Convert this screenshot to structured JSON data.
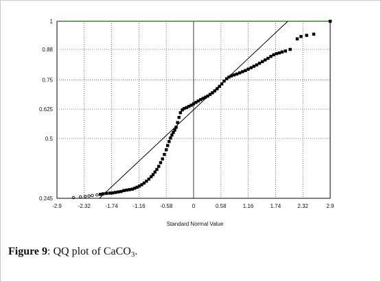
{
  "chart_data": {
    "type": "scatter",
    "title": "",
    "xlabel": "Standard Normal Value",
    "ylabel": "",
    "xlim": [
      -2.9,
      2.9
    ],
    "ylim": [
      0.245,
      1.0
    ],
    "x_ticks": [
      "-2.9",
      "-2.32",
      "-1.74",
      "-1.16",
      "-0.58",
      "0",
      "0.58",
      "1.16",
      "1.74",
      "2.32",
      "2.9"
    ],
    "y_ticks": [
      "0.245",
      "0.5",
      "0.625",
      "0.75",
      "0.88",
      "1"
    ],
    "grid": "dotted",
    "reference_line": {
      "x": [
        -2.0,
        2.0
      ],
      "y": [
        0.245,
        1.0
      ]
    },
    "series": [
      {
        "points": [
          [
            -2.55,
            0.248
          ],
          [
            -2.4,
            0.251
          ],
          [
            -2.3,
            0.253
          ],
          [
            -2.22,
            0.255
          ],
          [
            -2.15,
            0.257
          ],
          [
            -2.05,
            0.259
          ],
          [
            -1.98,
            0.262
          ],
          [
            -1.92,
            0.264
          ],
          [
            -1.85,
            0.266
          ],
          [
            -1.78,
            0.267
          ],
          [
            -1.72,
            0.268
          ],
          [
            -1.66,
            0.27
          ],
          [
            -1.6,
            0.272
          ],
          [
            -1.54,
            0.274
          ],
          [
            -1.48,
            0.278
          ],
          [
            -1.42,
            0.28
          ],
          [
            -1.36,
            0.282
          ],
          [
            -1.3,
            0.284
          ],
          [
            -1.25,
            0.288
          ],
          [
            -1.2,
            0.292
          ],
          [
            -1.15,
            0.297
          ],
          [
            -1.1,
            0.303
          ],
          [
            -1.05,
            0.31
          ],
          [
            -1.0,
            0.318
          ],
          [
            -0.95,
            0.327
          ],
          [
            -0.9,
            0.337
          ],
          [
            -0.86,
            0.346
          ],
          [
            -0.82,
            0.357
          ],
          [
            -0.78,
            0.368
          ],
          [
            -0.74,
            0.381
          ],
          [
            -0.7,
            0.397
          ],
          [
            -0.66,
            0.413
          ],
          [
            -0.62,
            0.432
          ],
          [
            -0.58,
            0.452
          ],
          [
            -0.55,
            0.47
          ],
          [
            -0.52,
            0.487
          ],
          [
            -0.49,
            0.502
          ],
          [
            -0.46,
            0.515
          ],
          [
            -0.43,
            0.526
          ],
          [
            -0.4,
            0.536
          ],
          [
            -0.37,
            0.548
          ],
          [
            -0.34,
            0.568
          ],
          [
            -0.31,
            0.59
          ],
          [
            -0.28,
            0.61
          ],
          [
            -0.24,
            0.622
          ],
          [
            -0.2,
            0.628
          ],
          [
            -0.15,
            0.632
          ],
          [
            -0.1,
            0.637
          ],
          [
            -0.05,
            0.642
          ],
          [
            0.0,
            0.648
          ],
          [
            0.05,
            0.654
          ],
          [
            0.1,
            0.66
          ],
          [
            0.15,
            0.666
          ],
          [
            0.2,
            0.671
          ],
          [
            0.25,
            0.676
          ],
          [
            0.3,
            0.681
          ],
          [
            0.35,
            0.688
          ],
          [
            0.4,
            0.695
          ],
          [
            0.45,
            0.703
          ],
          [
            0.5,
            0.712
          ],
          [
            0.55,
            0.722
          ],
          [
            0.6,
            0.733
          ],
          [
            0.65,
            0.745
          ],
          [
            0.7,
            0.755
          ],
          [
            0.75,
            0.762
          ],
          [
            0.8,
            0.767
          ],
          [
            0.86,
            0.771
          ],
          [
            0.92,
            0.775
          ],
          [
            0.98,
            0.78
          ],
          [
            1.04,
            0.785
          ],
          [
            1.1,
            0.79
          ],
          [
            1.16,
            0.796
          ],
          [
            1.22,
            0.802
          ],
          [
            1.28,
            0.808
          ],
          [
            1.34,
            0.814
          ],
          [
            1.4,
            0.821
          ],
          [
            1.46,
            0.828
          ],
          [
            1.52,
            0.835
          ],
          [
            1.58,
            0.842
          ],
          [
            1.64,
            0.85
          ],
          [
            1.7,
            0.857
          ],
          [
            1.76,
            0.862
          ],
          [
            1.82,
            0.865
          ],
          [
            1.88,
            0.869
          ],
          [
            1.95,
            0.873
          ],
          [
            2.05,
            0.88
          ],
          [
            2.2,
            0.925
          ],
          [
            2.28,
            0.935
          ],
          [
            2.4,
            0.94
          ],
          [
            2.55,
            0.945
          ],
          [
            2.9,
            1.0
          ]
        ]
      }
    ]
  },
  "caption": {
    "label": "Figure 9",
    "sep": ":",
    "text": " QQ plot of CaCO",
    "sub": "3",
    "end": "."
  }
}
